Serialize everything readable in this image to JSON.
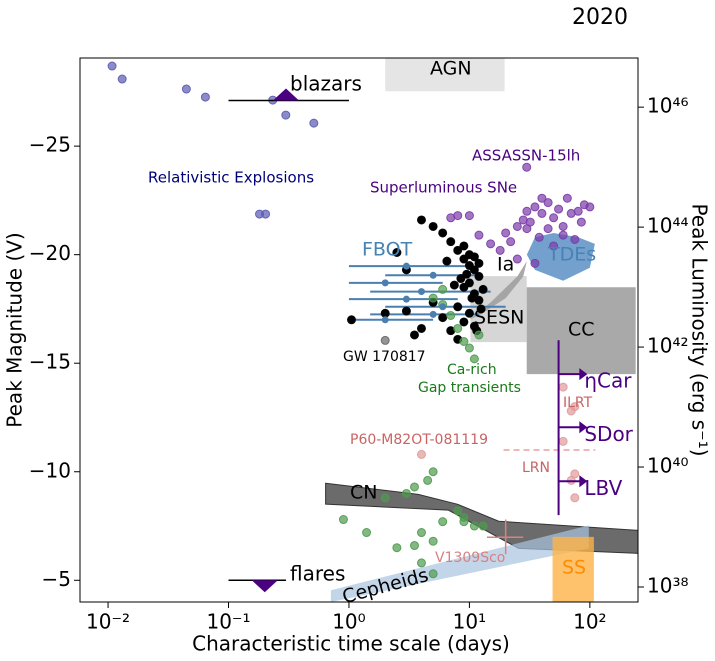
{
  "chart_data": {
    "type": "scatter",
    "title": "2020",
    "xlabel": "Characteristic time scale (days)",
    "ylabel": "Peak Magnitude (V)",
    "y2label": "Peak Luminosity (erg s⁻¹)",
    "xscale": "log",
    "y2scale": "log",
    "xlim": [
      0.00585,
      251
    ],
    "ylim": [
      -4,
      -29.06
    ],
    "y2lim": [
      5.62e+37,
      6.6e+46
    ],
    "xticks": [
      {
        "value": 0.01,
        "label": "10⁻²"
      },
      {
        "value": 0.1,
        "label": "10⁻¹"
      },
      {
        "value": 1,
        "label": "10⁰"
      },
      {
        "value": 10,
        "label": "10¹"
      },
      {
        "value": 100,
        "label": "10²"
      }
    ],
    "yticks": [
      {
        "value": -25,
        "label": "−25"
      },
      {
        "value": -20,
        "label": "−20"
      },
      {
        "value": -15,
        "label": "−15"
      },
      {
        "value": -10,
        "label": "−10"
      },
      {
        "value": -5,
        "label": "−5"
      }
    ],
    "y2ticks": [
      {
        "value": 1e+38,
        "label": "10³⁸"
      },
      {
        "value": 1e+40,
        "label": "10⁴⁰"
      },
      {
        "value": 1e+42,
        "label": "10⁴²"
      },
      {
        "value": 1e+44,
        "label": "10⁴⁴"
      },
      {
        "value": 1e+46,
        "label": "10⁴⁶"
      }
    ],
    "regions": [
      {
        "name": "CN",
        "color": "#6b6b6b",
        "label_color": "#000000",
        "x": [
          0.64,
          3.76,
          8,
          17.5,
          251,
          251,
          25.6,
          6.7,
          0.64
        ],
        "values": [
          -9.47,
          -8.96,
          -8.5,
          -7.72,
          -7.3,
          -6.24,
          -6.47,
          -8.23,
          -8.51
        ]
      },
      {
        "name": "Cepheids",
        "color": "#a9c4e0",
        "label_color": "#000000",
        "x": [
          0.708,
          0.708,
          98,
          98
        ],
        "values": [
          -4.0,
          -4.54,
          -7.53,
          -6.47
        ]
      },
      {
        "name": "AGN",
        "color": "#e5e5e5",
        "label_color": "#000000",
        "x": [
          2.0,
          19.6,
          19.6,
          2.0
        ],
        "values": [
          -29.06,
          -29.06,
          -27.53,
          -27.53
        ]
      },
      {
        "name": "SESN",
        "color": "#d6d6d6",
        "label_color": "#000000",
        "x": [
          10.2,
          29.9,
          29.9,
          10.2
        ],
        "values": [
          -19.01,
          -19.01,
          -15.97,
          -15.97
        ]
      },
      {
        "name": "CC",
        "color": "#a9a9a9",
        "label_color": "#000000",
        "x": [
          29.9,
          240,
          240,
          29.9
        ],
        "values": [
          -18.5,
          -18.5,
          -14.5,
          -14.5
        ]
      },
      {
        "name": "SS",
        "color": "#ffb347",
        "label_color": "#ff8c00",
        "x": [
          49,
          108,
          108,
          49
        ],
        "values": [
          -7.0,
          -7.0,
          -4.0,
          -4.0
        ]
      },
      {
        "name": "TDEs",
        "color": "#5b8fc4",
        "label_color": "#4682b4",
        "x": [
          30,
          35,
          50,
          80,
          110,
          100,
          60,
          35
        ],
        "values": [
          -20.0,
          -20.8,
          -21.0,
          -20.8,
          -20.5,
          -19.4,
          -18.8,
          -19.3
        ]
      },
      {
        "name": "Ia",
        "color": "#a0a0a0",
        "label_color": "#000000",
        "x": [
          10,
          15,
          25,
          30,
          28,
          20,
          12
        ],
        "values": [
          -17.0,
          -17.8,
          -19.0,
          -19.7,
          -19.0,
          -18.0,
          -17.2
        ]
      }
    ],
    "series": [
      {
        "name": "Relativistic Explosions",
        "color": "#5a5ab4",
        "label_color": "#00007a",
        "x": [
          0.0108,
          0.0131,
          0.0447,
          0.0643,
          0.233,
          0.299,
          0.511,
          0.181,
          0.203
        ],
        "values": [
          -28.69,
          -28.09,
          -27.63,
          -27.26,
          -27.12,
          -26.43,
          -26.06,
          -21.87,
          -21.87
        ]
      },
      {
        "name": "Superluminous SNe",
        "color": "#7a3aa8",
        "label_color": "#4b0082",
        "x": [
          7,
          8,
          10,
          12,
          15,
          18,
          20,
          22,
          25,
          28,
          30,
          32,
          35,
          38,
          40,
          45,
          50,
          55,
          60,
          65,
          70,
          75,
          80,
          85,
          90,
          40,
          30,
          50,
          25,
          35,
          60,
          100,
          45
        ],
        "values": [
          -21.7,
          -21.8,
          -21.8,
          -20.9,
          -20.5,
          -20.2,
          -21.0,
          -20.6,
          -21.3,
          -21.6,
          -22.0,
          -21.5,
          -22.2,
          -20.8,
          -21.9,
          -22.4,
          -21.7,
          -22.1,
          -21.3,
          -22.6,
          -21.9,
          -20.7,
          -22.0,
          -21.5,
          -22.3,
          -22.6,
          -21.2,
          -20.4,
          -19.8,
          -19.6,
          -20.9,
          -22.2,
          -21.2
        ]
      },
      {
        "name": "ASSASSN-15lh",
        "color": "#7a3aa8",
        "label_color": "#4b0082",
        "x": [
          29.9
        ],
        "values": [
          -24.03
        ]
      },
      {
        "color": "#000000",
        "x": [
          2.5,
          3,
          4,
          5,
          6,
          7,
          8,
          9,
          10,
          11,
          12,
          10,
          9,
          11,
          12,
          8,
          10,
          6,
          9,
          11,
          4,
          7,
          5,
          3,
          2,
          1.05,
          10,
          11,
          12,
          9.5,
          8.5,
          10.5,
          13,
          7.5,
          6.5,
          12.5,
          11.5,
          9,
          3.5,
          8
        ],
        "values": [
          -20.1,
          -19.3,
          -21.6,
          -21.3,
          -21.0,
          -20.6,
          -20.2,
          -19.8,
          -19.5,
          -19.3,
          -19.0,
          -18.7,
          -18.5,
          -18.2,
          -17.9,
          -17.6,
          -17.3,
          -17.1,
          -16.9,
          -16.7,
          -16.6,
          -16.5,
          -17.8,
          -17.4,
          -17.3,
          -17.0,
          -20.0,
          -19.9,
          -19.6,
          -19.1,
          -18.9,
          -18.0,
          -18.4,
          -18.6,
          -19.7,
          -17.5,
          -16.5,
          -20.4,
          -16.3,
          -16.1
        ]
      },
      {
        "name": "GW 170817",
        "color": "#666666",
        "label_color": "#000000",
        "x": [
          2.0
        ],
        "values": [
          -16.05
        ]
      },
      {
        "color": "#4e9a4e",
        "x": [
          5,
          6,
          7,
          8,
          9,
          10,
          11,
          12,
          6,
          0.9,
          2,
          3,
          3.5,
          4.5,
          5,
          4,
          5,
          6,
          8,
          9,
          11,
          13,
          4,
          3.5,
          2.5,
          5,
          1.4,
          9
        ],
        "values": [
          -18.0,
          -18.4,
          -17.2,
          -16.6,
          -16.0,
          -15.7,
          -15.2,
          -16.3,
          -17.7,
          -7.8,
          -8.8,
          -9.0,
          -9.3,
          -9.6,
          -10.0,
          -7.2,
          -6.8,
          -7.7,
          -8.2,
          -7.7,
          -7.5,
          -7.5,
          -5.8,
          -6.6,
          -6.5,
          -5.3,
          -7.2,
          -7.9
        ]
      },
      {
        "color": "#e09a9a",
        "x": [
          60,
          70,
          75,
          60,
          4,
          75,
          70,
          75
        ],
        "values": [
          -13.9,
          -12.8,
          -13.0,
          -11.4,
          -10.8,
          -9.9,
          -9.6,
          -8.8
        ]
      }
    ],
    "fbot": {
      "name": "FBOT",
      "color": "#4a7fb0",
      "label_color": "#4682b4",
      "x": [
        3,
        5,
        2,
        4,
        3,
        6,
        5,
        2
      ],
      "values": [
        -19.47,
        -19.05,
        -18.7,
        -18.3,
        -17.95,
        -17.6,
        -17.25,
        -17.0
      ],
      "xlow": [
        1,
        2,
        1,
        1.5,
        1,
        2,
        1.5,
        1
      ],
      "xhigh": [
        10,
        12,
        6,
        15,
        8,
        20,
        12,
        5
      ]
    },
    "limits": [
      {
        "name": "blazars",
        "color": "#4b0082",
        "x": [
          0.1,
          1
        ],
        "value": -27.1,
        "marker_x": 0.3,
        "direction": "up"
      },
      {
        "name": "flares",
        "color": "#4b0082",
        "x": [
          0.1,
          0.3
        ],
        "value": -5.0,
        "marker_x": 0.2,
        "direction": "down"
      }
    ],
    "lbv": {
      "color": "#4b0082",
      "x": 55,
      "ylow": -8.0,
      "yhigh": -16.06,
      "arrow_x": 85,
      "arrows": [
        {
          "name": "ηCar",
          "value": -14.5
        },
        {
          "name": "SDor",
          "value": -12.05
        },
        {
          "name": "LBV",
          "value": -9.56
        }
      ]
    },
    "dashed_line": {
      "color": "#e8a0a0",
      "x": [
        19.2,
        111
      ],
      "value": -11.0
    },
    "errorpoint": {
      "name": "V1309Sco",
      "color": "#d98080",
      "x": 20,
      "value": -6.98,
      "xlow": 14,
      "xhigh": 28,
      "ylow": -6.2,
      "yhigh": -7.8
    },
    "annotations": [
      {
        "text": "Ca-rich",
        "color": "#1a7a1a"
      },
      {
        "text": "Gap transients",
        "color": "#1a7a1a"
      },
      {
        "text": "ILRT",
        "color": "#c86464"
      },
      {
        "text": "P60-M82OT-081119",
        "color": "#c86464"
      },
      {
        "text": "LRN",
        "color": "#c86464"
      }
    ]
  }
}
